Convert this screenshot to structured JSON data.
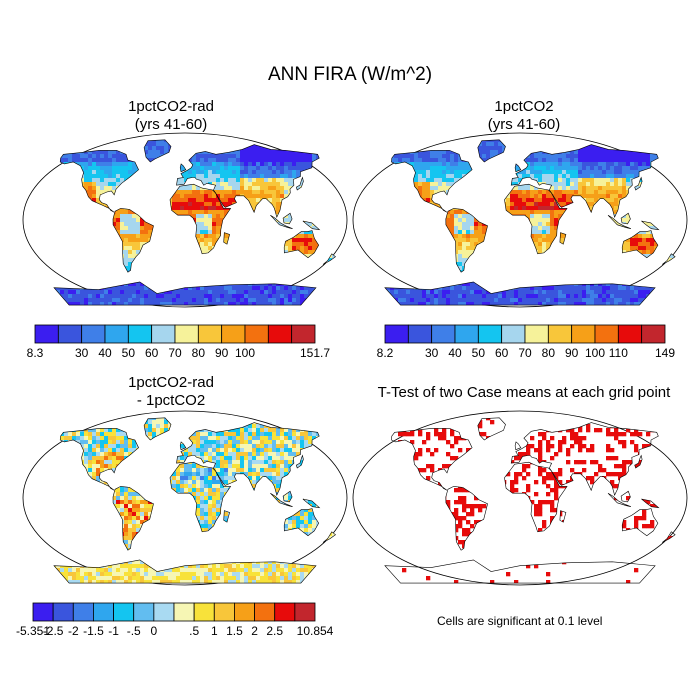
{
  "figure": {
    "title": "ANN FIRA (W/m^2)"
  },
  "panels": [
    {
      "id": "p1",
      "title_line1": "1pctCO2-rad",
      "title_line2": "(yrs 41-60)"
    },
    {
      "id": "p2",
      "title_line1": "1pctCO2",
      "title_line2": "(yrs 41-60)"
    },
    {
      "id": "p3",
      "title_line1": "1pctCO2-rad",
      "title_line2": "- 1pctCO2"
    },
    {
      "id": "p4",
      "title_line1": "T-Test of two Case means at each grid point",
      "title_line2": ""
    }
  ],
  "colorbars": [
    {
      "id": "cb1",
      "colors": [
        "#3b1ef0",
        "#3a55dd",
        "#3f7fe8",
        "#2fa6ee",
        "#14c5f0",
        "#a6d6ee",
        "#f6f29a",
        "#f8c63a",
        "#f6a018",
        "#f3710f",
        "#e70b0b",
        "#c2262d"
      ],
      "labels": [
        "8.3",
        "30",
        "40",
        "50",
        "60",
        "70",
        "80",
        "90",
        "100",
        "151.7"
      ],
      "label_edges": [
        0,
        2,
        3,
        4,
        5,
        6,
        7,
        8,
        9,
        12
      ]
    },
    {
      "id": "cb2",
      "colors": [
        "#3b1ef0",
        "#3a55dd",
        "#3f7fe8",
        "#2fa6ee",
        "#14c5f0",
        "#a6d6ee",
        "#f6f29a",
        "#f8c63a",
        "#f6a018",
        "#f3710f",
        "#e70b0b",
        "#c2262d"
      ],
      "labels": [
        "8.2",
        "30",
        "40",
        "50",
        "60",
        "70",
        "80",
        "90",
        "100",
        "110",
        "149"
      ],
      "label_edges": [
        0,
        2,
        3,
        4,
        5,
        6,
        7,
        8,
        9,
        10,
        12
      ]
    },
    {
      "id": "cb3",
      "colors": [
        "#3b1ef0",
        "#3a55dd",
        "#3f7fe8",
        "#2fa6ee",
        "#14c5f0",
        "#62bdf0",
        "#a9daf2",
        "#f6f6b4",
        "#f8e23a",
        "#f8c63a",
        "#f6a018",
        "#f3710f",
        "#e70b0b",
        "#c2262d"
      ],
      "labels": [
        "-5.351",
        "-2.5",
        "-2",
        "-1.5",
        "-1",
        "-.5",
        "0",
        ".5",
        "1",
        "1.5",
        "2",
        "2.5",
        "10.854"
      ],
      "label_edges": [
        0,
        1,
        2,
        3,
        4,
        5,
        6,
        8,
        9,
        10,
        11,
        12,
        14
      ]
    }
  ],
  "note": "Cells are significant at 0.1 level",
  "palette": {
    "land_warm": "#e70b0b",
    "land_cool": "#3a55dd",
    "significant": "#e70b0b",
    "outline": "#000000"
  }
}
